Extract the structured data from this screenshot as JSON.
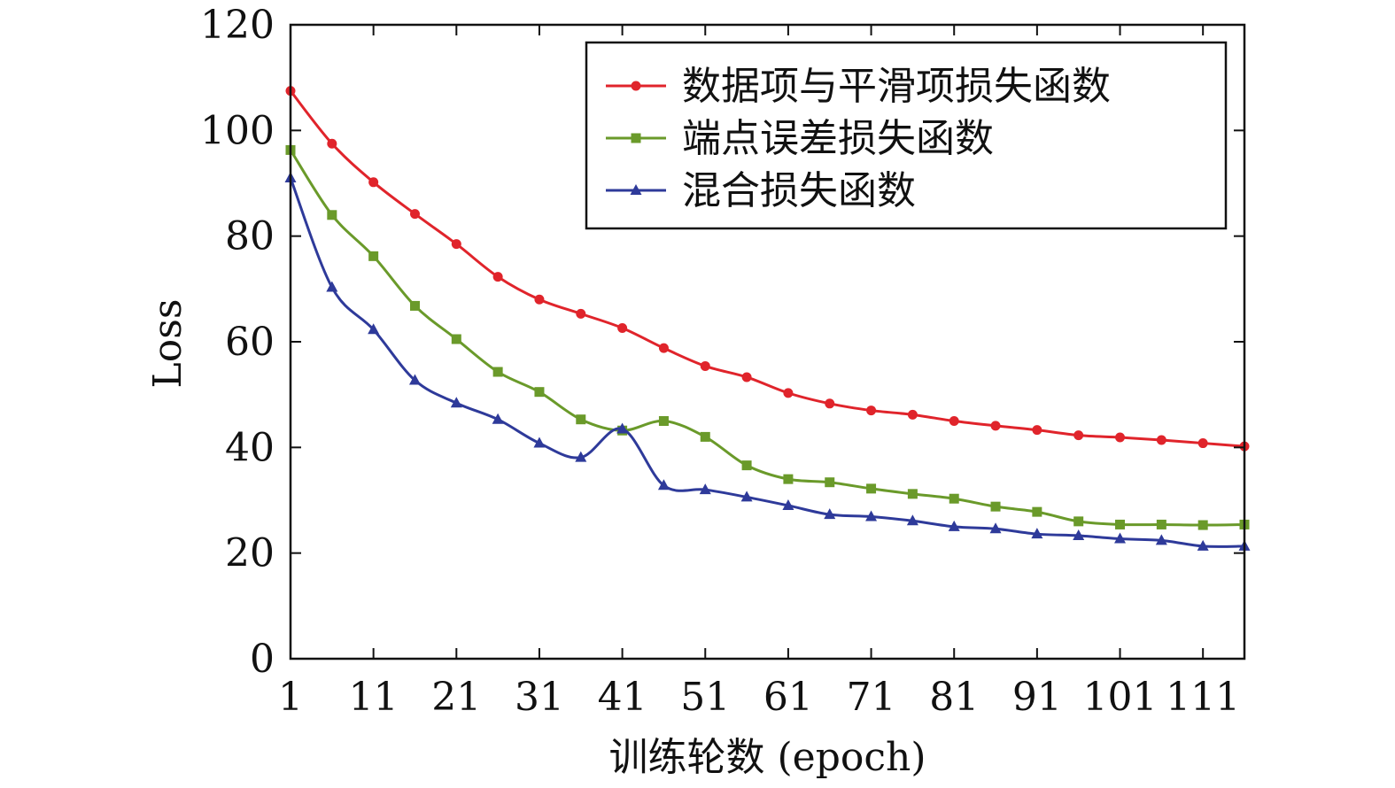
{
  "chart_data": {
    "type": "line",
    "title": "",
    "xlabel": "训练轮数 (epoch)",
    "ylabel": "Loss",
    "xlim": [
      1,
      116
    ],
    "ylim": [
      0,
      120
    ],
    "xticks": [
      1,
      11,
      21,
      31,
      41,
      51,
      61,
      71,
      81,
      91,
      101,
      111
    ],
    "yticks": [
      0,
      20,
      40,
      60,
      80,
      100,
      120
    ],
    "grid": false,
    "legend_position": "top-right",
    "x": [
      1,
      6,
      11,
      16,
      21,
      26,
      31,
      36,
      41,
      46,
      51,
      56,
      61,
      66,
      71,
      76,
      81,
      86,
      91,
      96,
      101,
      106,
      111,
      116
    ],
    "series": [
      {
        "name": "数据项与平滑项损失函数",
        "color": "#e0242b",
        "marker": "circle",
        "values": [
          107.5,
          97.5,
          90.2,
          84.2,
          78.5,
          72.3,
          68.0,
          65.3,
          62.6,
          58.8,
          55.4,
          53.3,
          50.3,
          48.3,
          47.0,
          46.2,
          45.0,
          44.1,
          43.3,
          42.3,
          41.9,
          41.4,
          40.8,
          40.2
        ]
      },
      {
        "name": "端点误差损失函数",
        "color": "#6a9a2a",
        "marker": "square",
        "values": [
          96.3,
          84.0,
          76.2,
          66.8,
          60.5,
          54.3,
          50.5,
          45.3,
          43.2,
          45.0,
          42.0,
          36.6,
          34.0,
          33.4,
          32.2,
          31.2,
          30.3,
          28.8,
          27.8,
          26.0,
          25.4,
          25.4,
          25.3,
          25.4
        ]
      },
      {
        "name": "混合损失函数",
        "color": "#2e3a9a",
        "marker": "triangle",
        "values": [
          91.0,
          70.3,
          62.3,
          52.7,
          48.4,
          45.3,
          40.8,
          38.1,
          43.5,
          32.8,
          32.0,
          30.6,
          29.0,
          27.3,
          26.9,
          26.1,
          25.0,
          24.6,
          23.6,
          23.3,
          22.7,
          22.4,
          21.3,
          21.3
        ]
      }
    ]
  }
}
